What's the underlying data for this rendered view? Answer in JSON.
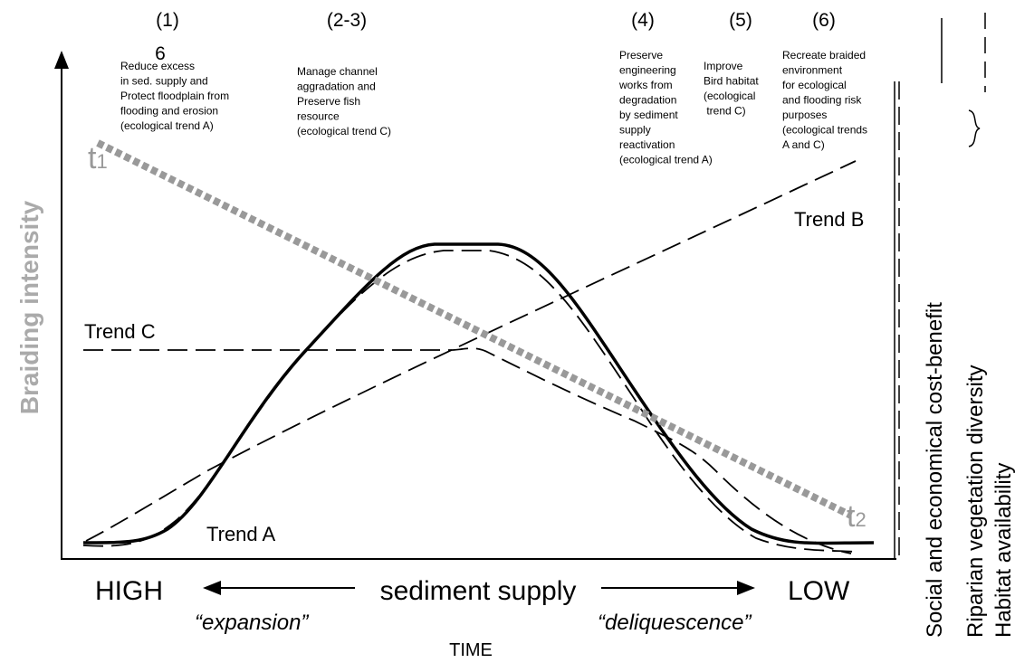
{
  "stages": [
    {
      "label": "(1)",
      "extra": "6",
      "lines": [
        "Reduce excess",
        "in sed. supply and",
        "Protect floodplain from",
        "flooding and erosion",
        "(ecological trend A)"
      ]
    },
    {
      "label": "(2-3)",
      "lines": [
        "Manage channel",
        "aggradation and",
        "Preserve fish",
        "resource",
        "(ecological trend C)"
      ]
    },
    {
      "label": "(4)",
      "lines": [
        "Preserve",
        "engineering",
        "works from",
        "degradation",
        "by sediment",
        "supply",
        "reactivation",
        "(ecological trend A)"
      ]
    },
    {
      "label": "(5)",
      "lines": [
        "Improve",
        "Bird habitat",
        "(ecological",
        " trend C)"
      ]
    },
    {
      "label": "(6)",
      "lines": [
        "Recreate braided",
        "environment",
        "for ecological",
        "and flooding risk",
        "purposes",
        "(ecological trends",
        "A and C)"
      ]
    }
  ],
  "t1": {
    "base": "t",
    "sub": "1"
  },
  "t2": {
    "base": "t",
    "sub": "2"
  },
  "trends": {
    "a": "Trend A",
    "b": "Trend B",
    "c": "Trend C"
  },
  "y_axis_label": "Braiding intensity",
  "right_labels": [
    "Social and economical cost-benefit",
    "Riparian vegetation diversity",
    "Habitat availability"
  ],
  "bottom": {
    "high": "HIGH",
    "middle": "sediment supply",
    "low": "LOW",
    "left_phase": "“expansion”",
    "right_phase": "“deliquescence”",
    "time": "TIME"
  }
}
